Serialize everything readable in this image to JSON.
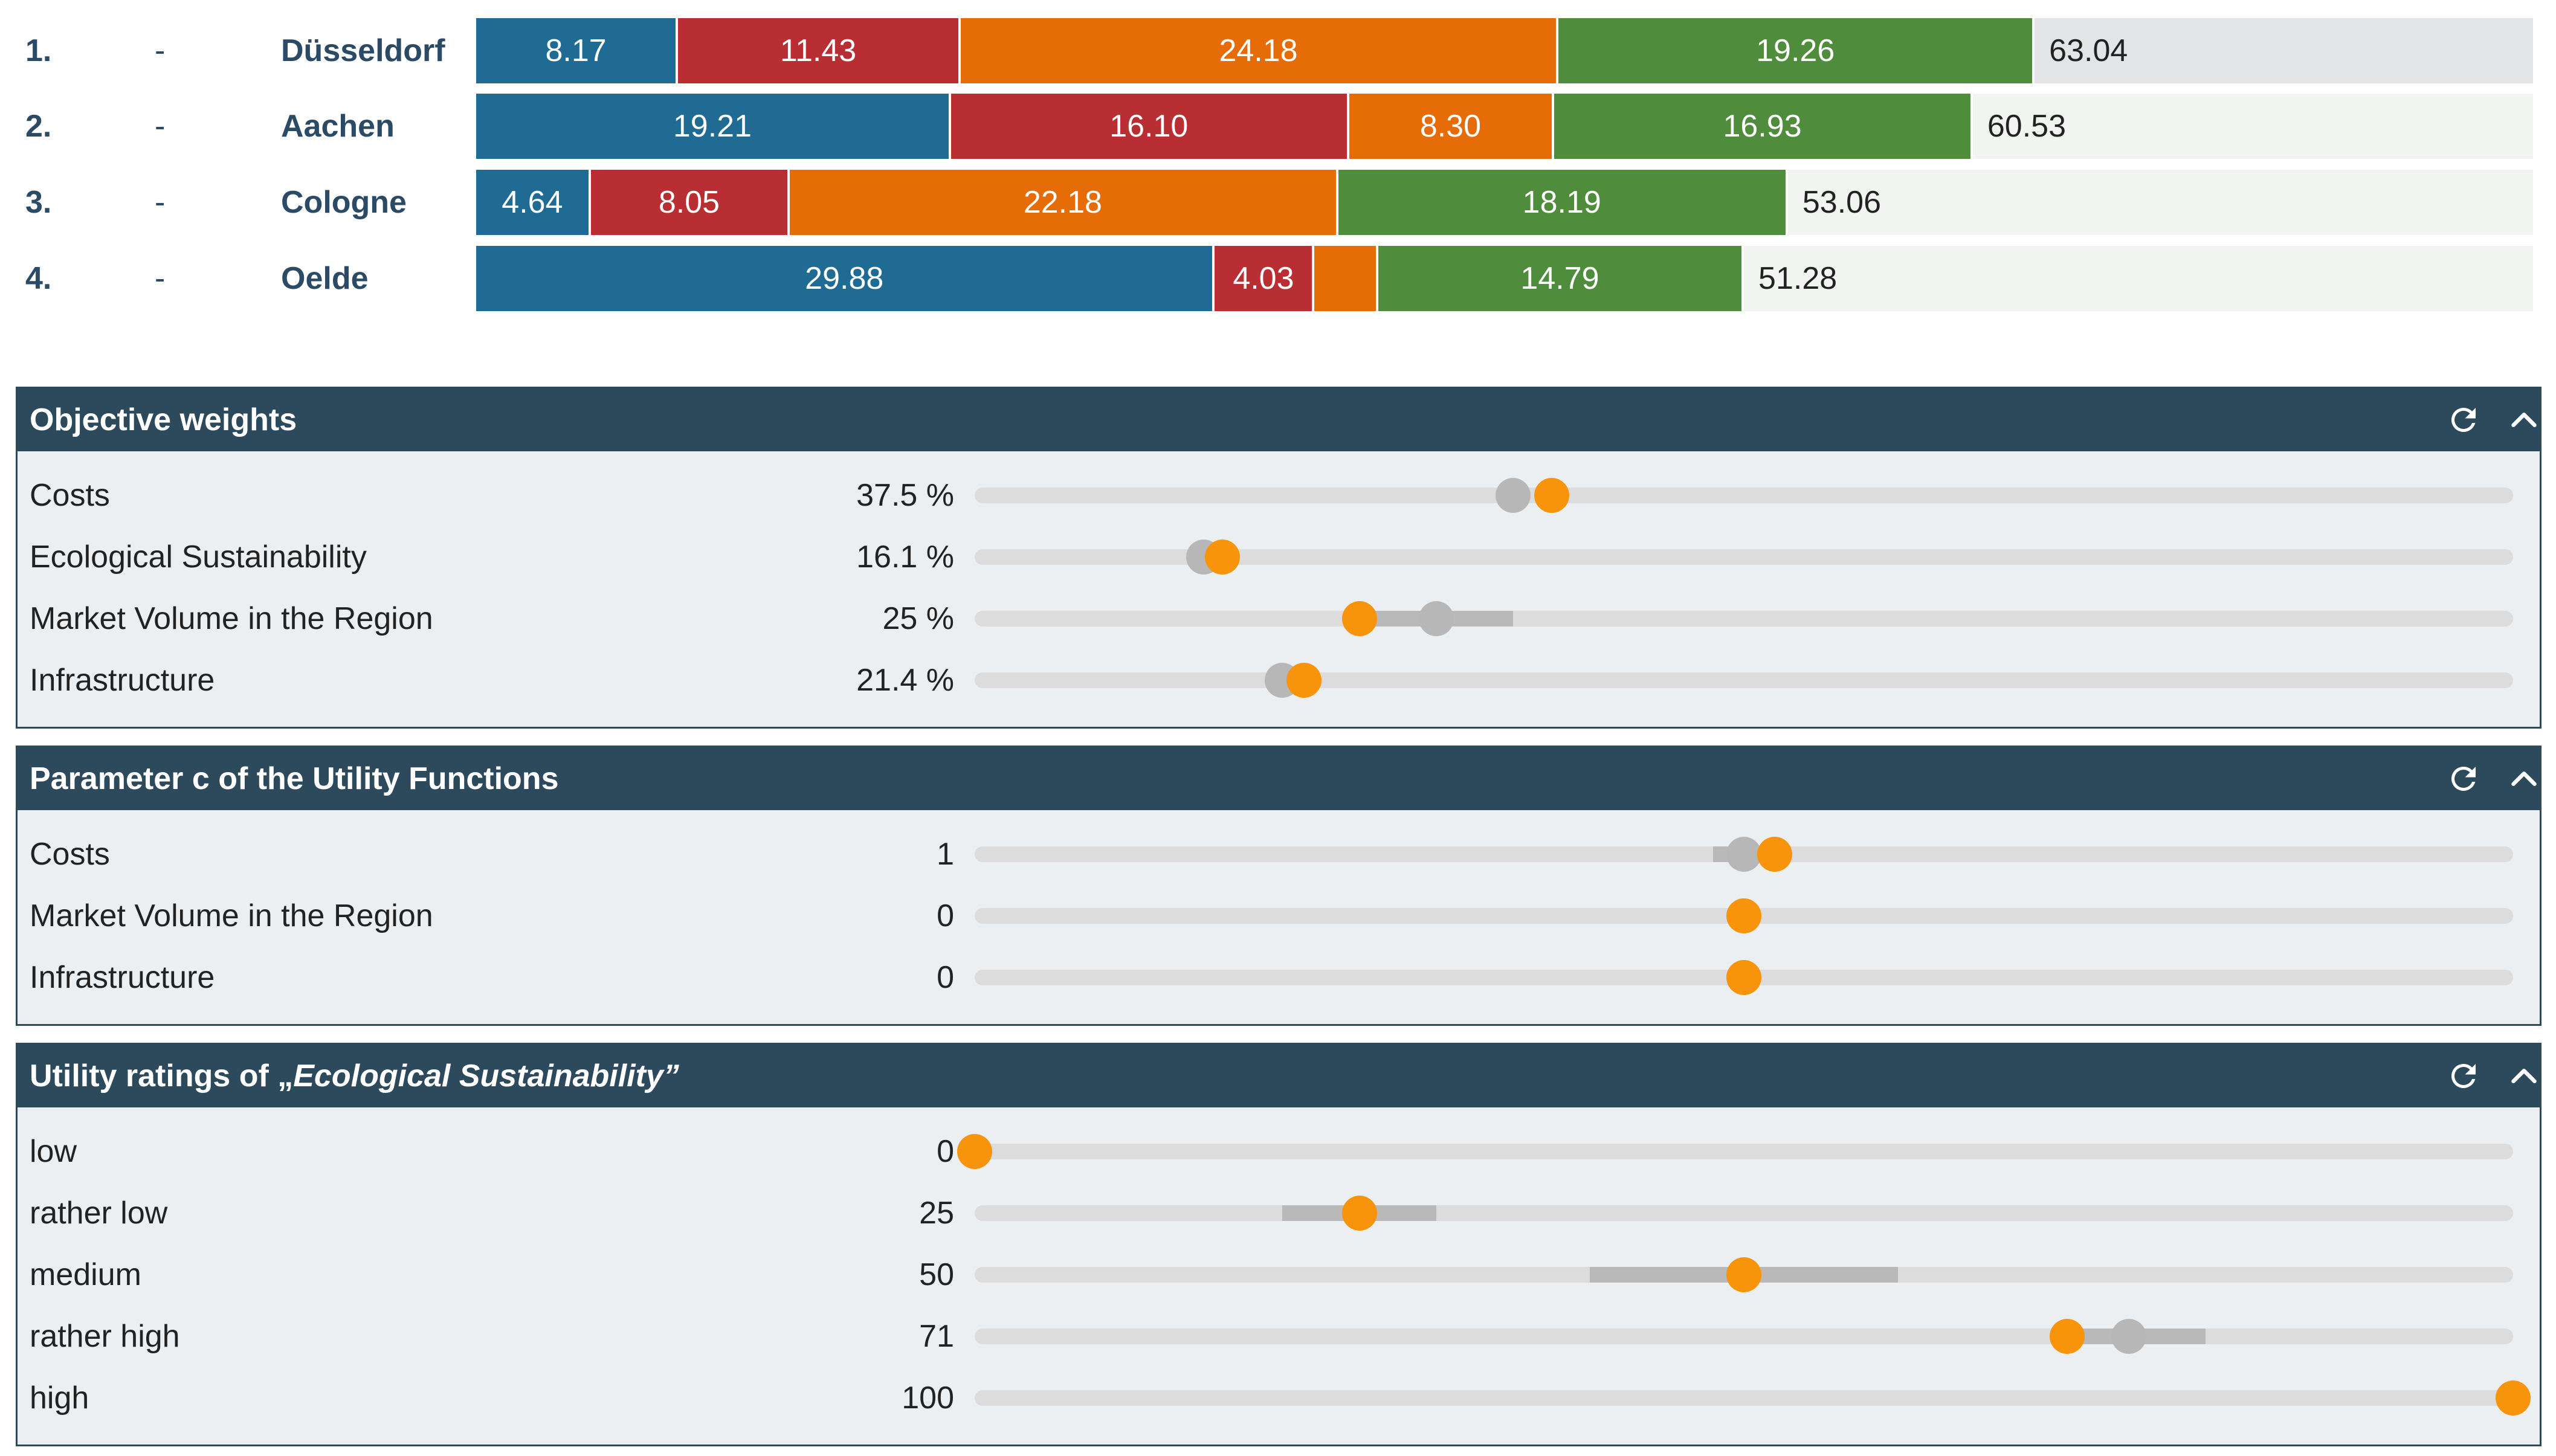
{
  "ranking": [
    {
      "rank": "1.",
      "delta": "-",
      "name": "Düsseldorf",
      "total": "63.04",
      "segments": [
        {
          "label": "8.17",
          "value": 8.17,
          "color": "#1f6b94"
        },
        {
          "label": "11.43",
          "value": 11.43,
          "color": "#b82e32"
        },
        {
          "label": "24.18",
          "value": 24.18,
          "color": "#e56c06"
        },
        {
          "label": "19.26",
          "value": 19.26,
          "color": "#4f8d3d"
        }
      ],
      "bg": "#e2e4e6"
    },
    {
      "rank": "2.",
      "delta": "-",
      "name": "Aachen",
      "total": "60.53",
      "segments": [
        {
          "label": "19.21",
          "value": 19.21,
          "color": "#1f6b94"
        },
        {
          "label": "16.10",
          "value": 16.1,
          "color": "#b82e32"
        },
        {
          "label": "8.30",
          "value": 8.3,
          "color": "#e56c06"
        },
        {
          "label": "16.93",
          "value": 16.93,
          "color": "#4f8d3d"
        }
      ],
      "bg": "#f1f4f1"
    },
    {
      "rank": "3.",
      "delta": "-",
      "name": "Cologne",
      "total": "53.06",
      "segments": [
        {
          "label": "4.64",
          "value": 4.64,
          "color": "#1f6b94"
        },
        {
          "label": "8.05",
          "value": 8.05,
          "color": "#b82e32"
        },
        {
          "label": "22.18",
          "value": 22.18,
          "color": "#e56c06"
        },
        {
          "label": "18.19",
          "value": 18.19,
          "color": "#4f8d3d"
        }
      ],
      "bg": "#f1f4f1"
    },
    {
      "rank": "4.",
      "delta": "-",
      "name": "Oelde",
      "total": "51.28",
      "segments": [
        {
          "label": "29.88",
          "value": 29.88,
          "color": "#1f6b94"
        },
        {
          "label": "4.03",
          "value": 4.03,
          "color": "#b82e32"
        },
        {
          "label": "",
          "value": 2.58,
          "color": "#e56c06"
        },
        {
          "label": "14.79",
          "value": 14.79,
          "color": "#4f8d3d"
        }
      ],
      "bg": "#f1f4f1"
    }
  ],
  "scale_max": 83.2,
  "panels": [
    {
      "title": "Objective weights",
      "title_em": "",
      "title_suffix": "",
      "rows": [
        {
          "label": "Costs",
          "value": "37.5 %",
          "cur": 0.375,
          "ref": 0.35,
          "range": []
        },
        {
          "label": "Ecological Sustainability",
          "value": "16.1 %",
          "cur": 0.161,
          "ref": 0.149,
          "range": []
        },
        {
          "label": "Market Volume in the Region",
          "value": "25 %",
          "cur": 0.25,
          "ref": 0.3,
          "range": [
            0.25,
            0.35
          ]
        },
        {
          "label": "Infrastructure",
          "value": "21.4 %",
          "cur": 0.214,
          "ref": 0.2,
          "range": []
        }
      ]
    },
    {
      "title": "Parameter c of the Utility Functions",
      "title_em": "",
      "title_suffix": "",
      "rows": [
        {
          "label": "Costs",
          "value": "1",
          "cur": 0.52,
          "ref": 0.5,
          "range": [
            0.48,
            0.52
          ]
        },
        {
          "label": "Market Volume in the Region",
          "value": "0",
          "cur": 0.5,
          "ref": null,
          "range": []
        },
        {
          "label": "Infrastructure",
          "value": "0",
          "cur": 0.5,
          "ref": null,
          "range": []
        }
      ]
    },
    {
      "title": "Utility ratings of „",
      "title_em": "Ecological Sustainability",
      "title_suffix": "”",
      "rows": [
        {
          "label": "low",
          "value": "0",
          "cur": 0.0,
          "ref": null,
          "range": []
        },
        {
          "label": "rather low",
          "value": "25",
          "cur": 0.25,
          "ref": null,
          "range": [
            0.2,
            0.3
          ]
        },
        {
          "label": "medium",
          "value": "50",
          "cur": 0.5,
          "ref": null,
          "range": [
            0.4,
            0.6
          ]
        },
        {
          "label": "rather high",
          "value": "71",
          "cur": 0.71,
          "ref": 0.75,
          "range": [
            0.71,
            0.8
          ]
        },
        {
          "label": "high",
          "value": "100",
          "cur": 1.0,
          "ref": null,
          "range": []
        }
      ]
    }
  ],
  "icons": {
    "reset": "refresh-icon",
    "collapse": "chevron-up-icon"
  }
}
